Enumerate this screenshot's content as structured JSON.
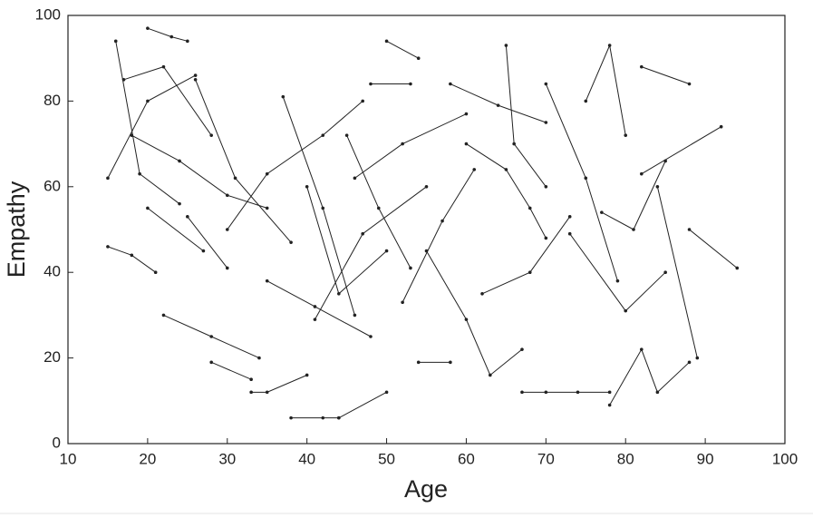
{
  "chart_data": {
    "type": "line",
    "color": "#222",
    "markers": true,
    "xlabel": "Age",
    "ylabel": "Empathy",
    "xlim": [
      10,
      100
    ],
    "ylim": [
      0,
      100
    ],
    "xticks": [
      10,
      20,
      30,
      40,
      50,
      60,
      70,
      80,
      90,
      100
    ],
    "yticks": [
      0,
      20,
      40,
      60,
      80,
      100
    ],
    "series": [
      {
        "x": [
          16,
          19,
          24
        ],
        "values": [
          94,
          63,
          56
        ]
      },
      {
        "x": [
          17,
          22,
          28
        ],
        "values": [
          85,
          88,
          72
        ]
      },
      {
        "x": [
          20,
          23,
          25
        ],
        "values": [
          97,
          95,
          94
        ]
      },
      {
        "x": [
          38,
          42,
          44
        ],
        "values": [
          6,
          6,
          6
        ]
      },
      {
        "x": [
          44,
          50
        ],
        "values": [
          6,
          12
        ]
      },
      {
        "x": [
          33,
          35,
          40
        ],
        "values": [
          12,
          12,
          16
        ]
      },
      {
        "x": [
          54,
          58
        ],
        "values": [
          19,
          19
        ]
      },
      {
        "x": [
          67,
          70,
          74,
          78
        ],
        "values": [
          12,
          12,
          12,
          12
        ]
      },
      {
        "x": [
          78,
          82,
          84,
          88
        ],
        "values": [
          9,
          22,
          12,
          19
        ]
      },
      {
        "x": [
          82,
          88
        ],
        "values": [
          88,
          84
        ]
      },
      {
        "x": [
          88,
          94
        ],
        "values": [
          50,
          41
        ]
      },
      {
        "x": [
          82,
          92
        ],
        "values": [
          63,
          74
        ]
      },
      {
        "x": [
          15,
          18,
          21
        ],
        "values": [
          46,
          44,
          40
        ]
      },
      {
        "x": [
          26,
          31,
          38
        ],
        "values": [
          85,
          62,
          47
        ]
      },
      {
        "x": [
          40,
          44,
          50
        ],
        "values": [
          60,
          35,
          45
        ]
      },
      {
        "x": [
          45,
          49,
          53
        ],
        "values": [
          72,
          55,
          41
        ]
      },
      {
        "x": [
          50,
          54
        ],
        "values": [
          94,
          90
        ]
      },
      {
        "x": [
          60,
          65,
          68,
          70
        ],
        "values": [
          70,
          64,
          55,
          48
        ]
      },
      {
        "x": [
          65,
          66,
          70
        ],
        "values": [
          93,
          70,
          60
        ]
      },
      {
        "x": [
          70,
          75,
          79
        ],
        "values": [
          84,
          62,
          38
        ]
      },
      {
        "x": [
          75,
          78,
          80
        ],
        "values": [
          80,
          93,
          72
        ]
      },
      {
        "x": [
          30,
          35,
          42,
          47
        ],
        "values": [
          50,
          63,
          72,
          80
        ]
      },
      {
        "x": [
          22,
          28,
          34
        ],
        "values": [
          30,
          25,
          20
        ]
      },
      {
        "x": [
          55,
          60,
          63,
          67
        ],
        "values": [
          45,
          29,
          16,
          22
        ]
      },
      {
        "x": [
          35,
          41,
          48
        ],
        "values": [
          38,
          32,
          25
        ]
      },
      {
        "x": [
          41,
          47,
          55
        ],
        "values": [
          29,
          49,
          60
        ]
      },
      {
        "x": [
          58,
          64,
          70
        ],
        "values": [
          84,
          79,
          75
        ]
      },
      {
        "x": [
          18,
          24,
          30,
          35
        ],
        "values": [
          72,
          66,
          58,
          55
        ]
      },
      {
        "x": [
          73,
          80,
          85
        ],
        "values": [
          49,
          31,
          40
        ]
      },
      {
        "x": [
          46,
          52,
          60
        ],
        "values": [
          62,
          70,
          77
        ]
      },
      {
        "x": [
          25,
          30
        ],
        "values": [
          53,
          41
        ]
      },
      {
        "x": [
          62,
          68,
          73
        ],
        "values": [
          35,
          40,
          53
        ]
      },
      {
        "x": [
          20,
          27
        ],
        "values": [
          55,
          45
        ]
      },
      {
        "x": [
          37,
          42,
          46
        ],
        "values": [
          81,
          55,
          30
        ]
      },
      {
        "x": [
          28,
          33
        ],
        "values": [
          19,
          15
        ]
      },
      {
        "x": [
          84,
          89
        ],
        "values": [
          60,
          20
        ]
      },
      {
        "x": [
          52,
          57,
          61
        ],
        "values": [
          33,
          52,
          64
        ]
      },
      {
        "x": [
          77,
          81,
          85
        ],
        "values": [
          54,
          50,
          66
        ]
      },
      {
        "x": [
          15,
          20,
          26
        ],
        "values": [
          62,
          80,
          86
        ]
      },
      {
        "x": [
          48,
          53
        ],
        "values": [
          84,
          84
        ]
      }
    ]
  }
}
